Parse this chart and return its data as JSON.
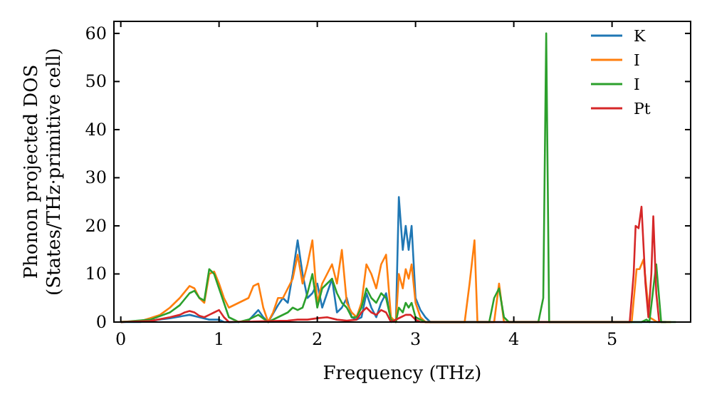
{
  "chart_data": {
    "type": "line",
    "xlabel": "Frequency (THz)",
    "ylabel": "Phonon projected DOS\n(States/THz·primitive cell)",
    "xlim": [
      -0.07,
      5.8
    ],
    "ylim": [
      0,
      62.5
    ],
    "xticks": [
      0,
      1,
      2,
      3,
      4,
      5
    ],
    "yticks": [
      0,
      10,
      20,
      30,
      40,
      50,
      60
    ],
    "legend": "top right",
    "grid": false,
    "marker": "none",
    "line_style": "solid",
    "series": [
      {
        "name": "K",
        "color": "#1f77b4",
        "x": [
          0,
          0.2,
          0.5,
          0.7,
          0.8,
          0.9,
          1.0,
          1.05,
          1.2,
          1.3,
          1.4,
          1.45,
          1.5,
          1.6,
          1.65,
          1.7,
          1.75,
          1.8,
          1.85,
          1.9,
          1.95,
          2.0,
          2.05,
          2.1,
          2.15,
          2.2,
          2.25,
          2.3,
          2.35,
          2.4,
          2.45,
          2.5,
          2.55,
          2.6,
          2.65,
          2.7,
          2.75,
          2.8,
          2.83,
          2.87,
          2.9,
          2.93,
          2.96,
          3.0,
          3.05,
          3.1,
          3.15,
          5.55
        ],
        "values": [
          0,
          0,
          0.8,
          1.5,
          1.0,
          0.5,
          0.5,
          0,
          0,
          0.3,
          2.5,
          1,
          0,
          3.5,
          5,
          4,
          10,
          17,
          10,
          5,
          6,
          8,
          3,
          6,
          9,
          2,
          3,
          5,
          1,
          0.5,
          1,
          6,
          3,
          1,
          4,
          6,
          0.5,
          0,
          26,
          15,
          20,
          15,
          20,
          5,
          2.5,
          1,
          0,
          0
        ]
      },
      {
        "name": "I",
        "color": "#ff7f0e",
        "x": [
          0,
          0.2,
          0.3,
          0.4,
          0.5,
          0.6,
          0.7,
          0.75,
          0.8,
          0.85,
          0.9,
          0.95,
          1.0,
          1.05,
          1.1,
          1.2,
          1.3,
          1.35,
          1.4,
          1.45,
          1.5,
          1.55,
          1.6,
          1.65,
          1.7,
          1.75,
          1.8,
          1.85,
          1.9,
          1.95,
          2.0,
          2.05,
          2.1,
          2.15,
          2.2,
          2.25,
          2.3,
          2.35,
          2.4,
          2.45,
          2.5,
          2.55,
          2.6,
          2.65,
          2.7,
          2.75,
          2.8,
          2.83,
          2.87,
          2.9,
          2.93,
          2.96,
          3.0,
          3.05,
          3.1,
          3.5,
          3.55,
          3.6,
          3.63,
          3.8,
          3.85,
          3.9,
          5.2,
          5.25,
          5.28,
          5.32,
          5.38,
          5.42,
          5.46,
          5.6
        ],
        "values": [
          0,
          0.2,
          0.8,
          1.5,
          3,
          5,
          7.5,
          7,
          5,
          4,
          10,
          10.5,
          8,
          5,
          3,
          4,
          5,
          7.5,
          8,
          3,
          0,
          2,
          5,
          5,
          7,
          9,
          14,
          8,
          12,
          17,
          4,
          8,
          10,
          12,
          8,
          15,
          4,
          2,
          1,
          4,
          12,
          10,
          7,
          12,
          14,
          1,
          0,
          10,
          7,
          11,
          9,
          12,
          4,
          1,
          0,
          0,
          8,
          17,
          0,
          0,
          8,
          0,
          0,
          11,
          11,
          13,
          1,
          0.5,
          0,
          0
        ]
      },
      {
        "name": "I",
        "color": "#2ca02c",
        "x": [
          0,
          0.3,
          0.5,
          0.6,
          0.7,
          0.75,
          0.8,
          0.85,
          0.9,
          0.95,
          1.0,
          1.05,
          1.1,
          1.2,
          1.3,
          1.4,
          1.5,
          1.6,
          1.7,
          1.75,
          1.8,
          1.85,
          1.9,
          1.95,
          2.0,
          2.05,
          2.1,
          2.15,
          2.2,
          2.25,
          2.3,
          2.35,
          2.4,
          2.45,
          2.5,
          2.55,
          2.6,
          2.65,
          2.7,
          2.75,
          2.8,
          2.83,
          2.87,
          2.9,
          2.93,
          2.96,
          3.0,
          3.1,
          3.75,
          3.8,
          3.85,
          3.9,
          3.95,
          4.25,
          4.3,
          4.33,
          4.36,
          5.3,
          5.35,
          5.38,
          5.42,
          5.45,
          5.5,
          5.65
        ],
        "values": [
          0,
          0.5,
          2,
          3.5,
          6,
          6.5,
          5,
          4.5,
          11,
          10,
          7,
          4,
          1,
          0,
          0.5,
          1.5,
          0,
          1,
          2,
          3,
          2.5,
          3,
          6,
          10,
          3,
          7,
          8,
          9,
          6,
          4,
          3,
          1,
          1,
          3,
          7,
          5,
          4,
          6,
          5,
          0.5,
          0,
          3,
          2,
          4,
          3,
          4,
          1,
          0,
          0,
          5,
          7,
          1,
          0,
          0,
          5,
          60,
          0,
          0,
          0.5,
          0,
          7,
          12,
          0,
          0
        ]
      },
      {
        "name": "Pt",
        "color": "#d62728",
        "x": [
          0,
          0.3,
          0.5,
          0.6,
          0.65,
          0.7,
          0.75,
          0.8,
          0.85,
          0.9,
          0.95,
          1.0,
          1.05,
          1.1,
          1.7,
          1.8,
          1.9,
          2.0,
          2.1,
          2.2,
          2.3,
          2.4,
          2.45,
          2.5,
          2.55,
          2.6,
          2.65,
          2.7,
          2.75,
          2.85,
          2.9,
          2.95,
          3.0,
          3.05,
          5.18,
          5.22,
          5.24,
          5.27,
          5.3,
          5.34,
          5.37,
          5.4,
          5.42,
          5.45,
          5.48
        ],
        "values": [
          0,
          0.2,
          1,
          1.5,
          2,
          2.3,
          2,
          1.3,
          1,
          1.5,
          2,
          2.5,
          1,
          0,
          0.3,
          0.5,
          0.5,
          0.8,
          1,
          0.5,
          0.3,
          0.5,
          2,
          3,
          2,
          1.5,
          2.5,
          2,
          0,
          1,
          1.5,
          1.5,
          0.5,
          0,
          0,
          10,
          20,
          19.5,
          24,
          8,
          1,
          10,
          22,
          6,
          0
        ]
      }
    ]
  }
}
